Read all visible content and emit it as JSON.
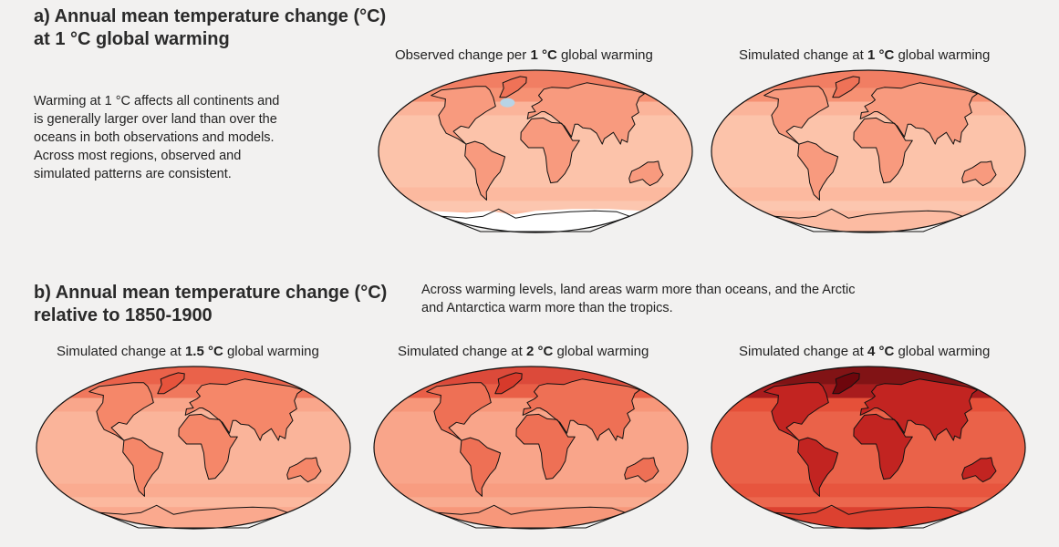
{
  "panel_a": {
    "heading_line1": "a) Annual mean temperature change (°C)",
    "heading_line2": "at 1 °C global warming",
    "description": [
      "Warming at 1 °C affects all continents and",
      "is generally larger over land than over the",
      "oceans in both observations and models.",
      "Across most regions, observed and",
      "simulated patterns are consistent."
    ],
    "maps": [
      {
        "title_pre": "Observed change per ",
        "title_bold": "1 °C",
        "title_post": " global warming",
        "intensity": 1
      },
      {
        "title_pre": "Simulated change at ",
        "title_bold": "1 °C",
        "title_post": " global warming",
        "intensity": 1
      }
    ]
  },
  "panel_b": {
    "heading_line1": "b) Annual mean temperature change (°C)",
    "heading_line2": "relative to 1850-1900",
    "description": [
      "Across warming levels, land areas warm more than oceans, and the Arctic",
      "and Antarctica warm more than the tropics."
    ],
    "maps": [
      {
        "title_pre": "Simulated change at ",
        "title_bold": "1.5 °C",
        "title_post": " global warming",
        "intensity": 1.5
      },
      {
        "title_pre": "Simulated change at ",
        "title_bold": "2 °C",
        "title_post": " global warming",
        "intensity": 2
      },
      {
        "title_pre": "Simulated change at ",
        "title_bold": "4 °C",
        "title_post": " global warming",
        "intensity": 4
      }
    ]
  },
  "colors": {
    "background": "#f2f1f0",
    "warming_1": "#f9cdb8",
    "warming_2": "#f29070",
    "warming_4": "#d93a25",
    "cooling": "#b8d4e6",
    "no_data": "#ffffff"
  }
}
